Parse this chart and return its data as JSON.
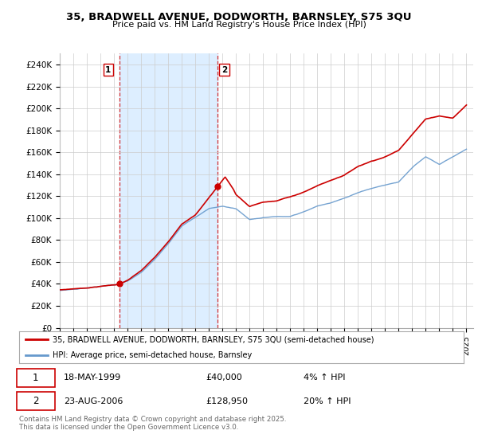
{
  "title": "35, BRADWELL AVENUE, DODWORTH, BARNSLEY, S75 3QU",
  "subtitle": "Price paid vs. HM Land Registry's House Price Index (HPI)",
  "ylim": [
    0,
    250000
  ],
  "yticks": [
    0,
    20000,
    40000,
    60000,
    80000,
    100000,
    120000,
    140000,
    160000,
    180000,
    200000,
    220000,
    240000
  ],
  "ytick_labels": [
    "£0",
    "£20K",
    "£40K",
    "£60K",
    "£80K",
    "£100K",
    "£120K",
    "£140K",
    "£160K",
    "£180K",
    "£200K",
    "£220K",
    "£240K"
  ],
  "sale1_date": "18-MAY-1999",
  "sale1_price": 40000,
  "sale1_hpi": "4% ↑ HPI",
  "sale2_date": "23-AUG-2006",
  "sale2_price": 128950,
  "sale2_hpi": "20% ↑ HPI",
  "legend_label1": "35, BRADWELL AVENUE, DODWORTH, BARNSLEY, S75 3QU (semi-detached house)",
  "legend_label2": "HPI: Average price, semi-detached house, Barnsley",
  "footer": "Contains HM Land Registry data © Crown copyright and database right 2025.\nThis data is licensed under the Open Government Licence v3.0.",
  "red_color": "#cc0000",
  "blue_color": "#6699cc",
  "shade_color": "#ddeeff",
  "background_color": "#ffffff",
  "grid_color": "#cccccc",
  "sale1_x": 1999.38,
  "sale2_x": 2006.64,
  "hpi_key_years": [
    1995,
    1996,
    1997,
    1998,
    1999,
    2000,
    2001,
    2002,
    2003,
    2004,
    2005,
    2006,
    2007,
    2008,
    2009,
    2010,
    2011,
    2012,
    2013,
    2014,
    2015,
    2016,
    2017,
    2018,
    2019,
    2020,
    2021,
    2022,
    2023,
    2024,
    2025
  ],
  "hpi_vals": [
    34000,
    35000,
    36000,
    37500,
    38500,
    42000,
    50000,
    62000,
    76000,
    92000,
    100000,
    108000,
    110000,
    108000,
    98000,
    100000,
    101000,
    101000,
    105000,
    110000,
    113000,
    117000,
    122000,
    126000,
    129000,
    132000,
    145000,
    155000,
    148000,
    155000,
    162000
  ],
  "red_key_years": [
    1995,
    1996,
    1997,
    1998,
    1999.38,
    2000,
    2001,
    2002,
    2003,
    2004,
    2005,
    2006.64,
    2007.2,
    2007.8,
    2008,
    2009,
    2010,
    2011,
    2012,
    2013,
    2014,
    2015,
    2016,
    2017,
    2018,
    2019,
    2020,
    2021,
    2022,
    2023,
    2024,
    2025
  ],
  "red_vals": [
    34500,
    35500,
    36500,
    38000,
    40000,
    43500,
    52000,
    64000,
    78000,
    95000,
    103000,
    128950,
    138000,
    127000,
    122000,
    111000,
    115000,
    116000,
    120000,
    124000,
    130000,
    135000,
    140000,
    148000,
    153000,
    157000,
    163000,
    178000,
    192000,
    195000,
    193000,
    205000
  ]
}
